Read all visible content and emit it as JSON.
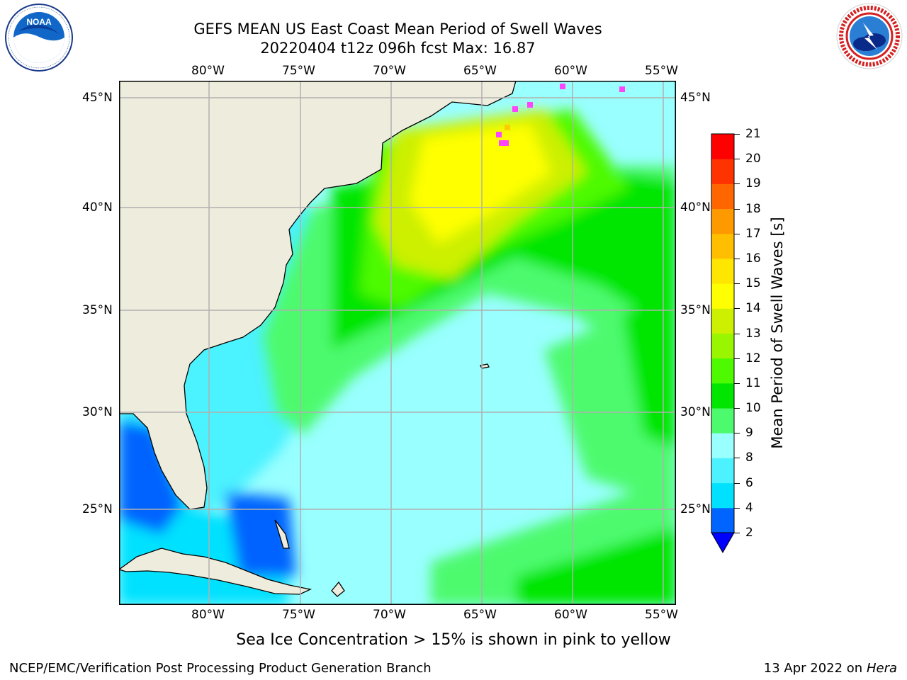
{
  "header": {
    "title_line1": "GEFS MEAN US East Coast Mean Period of Swell Waves",
    "title_line2": "20220404 t12z 096h fcst   Max: 16.87"
  },
  "logos": {
    "left": {
      "name": "NOAA",
      "ring_text": "NATIONAL OCEANIC AND ATMOSPHERIC ADMINISTRATION · U.S. DEPARTMENT OF COMMERCE"
    },
    "right": {
      "name": "NATIONAL WEATHER SERVICE"
    }
  },
  "map": {
    "lon_labels": [
      "80°W",
      "75°W",
      "70°W",
      "65°W",
      "60°W",
      "55°W"
    ],
    "lat_labels": [
      "45°N",
      "40°N",
      "35°N",
      "30°N",
      "25°N"
    ],
    "lon_range": [
      -85,
      -54.5
    ],
    "lat_range": [
      20,
      46
    ],
    "colors": {
      "land": "#eeeddd",
      "grid": "#b0b0b0",
      "coast": "#000000"
    }
  },
  "colorbar": {
    "label": "Mean Period of Swell Waves [s]",
    "ticks": [
      "2",
      "4",
      "6",
      "8",
      "9",
      "10",
      "11",
      "12",
      "13",
      "14",
      "15",
      "16",
      "17",
      "18",
      "19",
      "20",
      "21"
    ],
    "colors": [
      "#0064ff",
      "#00e1ff",
      "#4cf2ff",
      "#99ffff",
      "#4dfa6e",
      "#00e600",
      "#4dfa00",
      "#99f500",
      "#ccf000",
      "#ffff00",
      "#ffe600",
      "#ffbf00",
      "#ff9900",
      "#ff6600",
      "#ff3300",
      "#ff0000"
    ],
    "under_color": "#0000ff"
  },
  "caption": "Sea Ice Concentration > 15% is shown in pink to yellow",
  "footer": {
    "left": "NCEP/EMC/Verification Post Processing Product Generation Branch",
    "right_prefix": "13 Apr 2022 on ",
    "right_host": "Hera"
  }
}
